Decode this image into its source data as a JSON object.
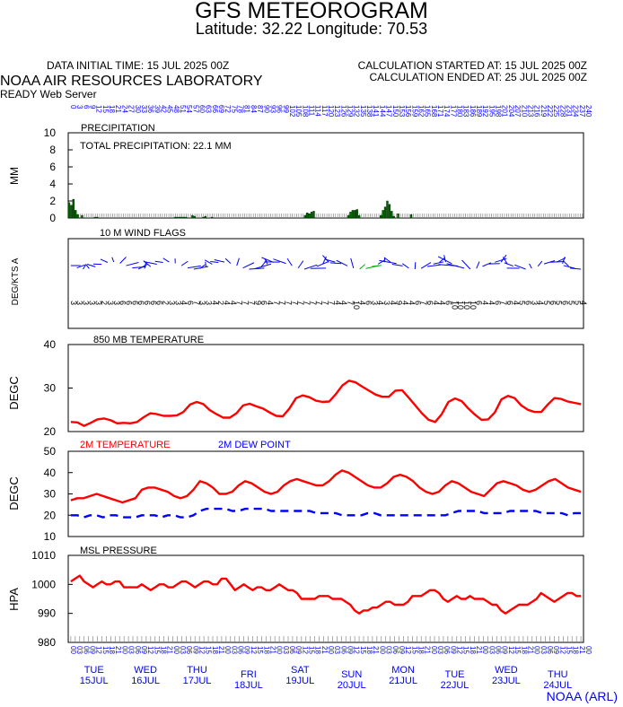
{
  "header": {
    "title": "GFS METEOROGRAM",
    "location": "Latitude: 32.22 Longitude:  70.53",
    "init_time": "DATA INITIAL TIME: 15 JUL 2025 00Z",
    "calc_started": "CALCULATION STARTED AT: 15 JUL 2025 00Z",
    "calc_ended": "CALCULATION ENDED AT: 25 JUL 2025 00Z",
    "lab": "NOAA AIR RESOURCES LABORATORY",
    "server": "READY Web Server"
  },
  "footer": {
    "credit": "NOAA (ARL)"
  },
  "colors": {
    "temp": "#ff0000",
    "dew": "#0000ff",
    "precip": "#006400",
    "wind": "#0000ff",
    "wind_alt": "#00aa00",
    "axis_text": "#0000ff"
  },
  "chart_data": [
    {
      "type": "bar",
      "name": "precipitation",
      "title": "PRECIPITATION",
      "annotation": "TOTAL PRECIPITATION:  22.1 MM",
      "ylabel": "MM",
      "ylim": [
        0,
        10
      ],
      "yticks": [
        0,
        2,
        4,
        6,
        8,
        10
      ],
      "x_hours_step": 3,
      "values": [
        1.8,
        1.5,
        2.2,
        0.9,
        0.4,
        0,
        0.3,
        0,
        0,
        0,
        0,
        0,
        0.1,
        0.1,
        0,
        0,
        0,
        0,
        0,
        0,
        0,
        0,
        0,
        0,
        0,
        0,
        0,
        0,
        0,
        0,
        0,
        0,
        0,
        0,
        0,
        0,
        0,
        0,
        0,
        0,
        0,
        0,
        0,
        0,
        0,
        0,
        0,
        0,
        0,
        0.1,
        0.1,
        0.1,
        0.1,
        0.1,
        0.1,
        0,
        0,
        0.3,
        0.2,
        0,
        0,
        0,
        0.1,
        0.2,
        0,
        0,
        0.1,
        0,
        0,
        0,
        0,
        0,
        0,
        0,
        0,
        0,
        0,
        0,
        0,
        0,
        0,
        0,
        0,
        0,
        0,
        0,
        0,
        0,
        0,
        0,
        0,
        0,
        0,
        0,
        0,
        0,
        0,
        0,
        0,
        0,
        0,
        0,
        0,
        0,
        0,
        0,
        0,
        0,
        0,
        0.3,
        0.6,
        0.5,
        0.7,
        0.8,
        0,
        0,
        0,
        0,
        0,
        0,
        0,
        0,
        0,
        0,
        0,
        0,
        0,
        0,
        0,
        0.3,
        0.7,
        0.9,
        0.9,
        1.0,
        0.3,
        0,
        0,
        0,
        0,
        0,
        0,
        0,
        0,
        0,
        0.3,
        0.9,
        1.3,
        2.0,
        1.6,
        0.8,
        0.2,
        0,
        0.5,
        0,
        0,
        0,
        0,
        0,
        0.4,
        0,
        0,
        0,
        0,
        0,
        0,
        0,
        0,
        0,
        0,
        0,
        0,
        0,
        0,
        0,
        0,
        0,
        0,
        0,
        0,
        0,
        0,
        0,
        0,
        0,
        0,
        0,
        0,
        0,
        0,
        0,
        0,
        0,
        0,
        0,
        0,
        0,
        0,
        0,
        0,
        0,
        0,
        0,
        0,
        0,
        0,
        0,
        0,
        0,
        0,
        0,
        0,
        0,
        0,
        0,
        0,
        0,
        0,
        0,
        0,
        0,
        0,
        0,
        0,
        0,
        0,
        0,
        0,
        0,
        0,
        0,
        0,
        0,
        0,
        0,
        0,
        0,
        0,
        0
      ]
    },
    {
      "type": "line",
      "name": "wind_flags",
      "title": "10 M  WIND FLAGS",
      "ylabel": "DEG/KTS  A",
      "speeds_kts": [
        3,
        3,
        3,
        3,
        3,
        2,
        3,
        3,
        6,
        6,
        6,
        6,
        6,
        6,
        6,
        2,
        3,
        3,
        4,
        6,
        7,
        3,
        3,
        4,
        2,
        4,
        4,
        7,
        7,
        7,
        9,
        6,
        4,
        7,
        7,
        7,
        7,
        7,
        7,
        7,
        7,
        7,
        7,
        4,
        4,
        7,
        10,
        4,
        6,
        3,
        4,
        3,
        4,
        9,
        4,
        4,
        6,
        7,
        6,
        4,
        4,
        6,
        10,
        10,
        10,
        10,
        6,
        4,
        4,
        6,
        7,
        6,
        4,
        5,
        6,
        3,
        4,
        5,
        6,
        5,
        6,
        5,
        5,
        4
      ],
      "speed_labels": [
        "3",
        "3",
        "3",
        "3",
        "3",
        "2",
        "3",
        "3",
        "6",
        "6",
        "6",
        "6",
        "6",
        "6",
        "6",
        "2",
        "3",
        "3",
        "4",
        "6",
        "7",
        "3",
        "3",
        "4",
        "2",
        "4",
        "4",
        "7",
        "7",
        "7",
        "9",
        "6",
        "4",
        "7",
        "7",
        "7",
        "7",
        "7",
        "7",
        "7",
        "7",
        "7",
        "7",
        "4",
        "4",
        "7",
        "10",
        "4",
        "6",
        "3",
        "4",
        "3",
        "4",
        "9",
        "4",
        "4",
        "6",
        "7",
        "6",
        "4",
        "4",
        "6",
        "10",
        "10",
        "10",
        "10",
        "6",
        "4",
        "4",
        "6",
        "7",
        "6",
        "4",
        "5",
        "6",
        "3",
        "4",
        "5",
        "6",
        "5",
        "6",
        "5",
        "5",
        "4"
      ]
    },
    {
      "type": "line",
      "name": "temp850",
      "title": "850 MB  TEMPERATURE",
      "ylabel": "DEGC",
      "ylim": [
        20,
        40
      ],
      "yticks": [
        20,
        30,
        40
      ],
      "series": [
        {
          "values": [
            22.2,
            22.1,
            21.3,
            22.0,
            22.8,
            23.0,
            22.6,
            21.9,
            22.0,
            21.9,
            22.2,
            23.3,
            24.2,
            24.0,
            23.6,
            23.6,
            23.7,
            24.5,
            26.2,
            26.8,
            26.3,
            24.9,
            24.0,
            23.2,
            23.2,
            24.2,
            26.0,
            26.4,
            25.8,
            25.3,
            24.4,
            23.6,
            23.5,
            25.3,
            27.7,
            28.3,
            27.9,
            27.1,
            26.8,
            26.9,
            28.6,
            30.6,
            31.7,
            31.3,
            30.3,
            29.4,
            28.5,
            28.0,
            28.0,
            29.4,
            29.5,
            27.8,
            26.0,
            24.2,
            22.7,
            22.2,
            24.0,
            26.8,
            27.6,
            27.0,
            25.3,
            23.9,
            22.7,
            22.8,
            24.4,
            27.4,
            28.2,
            27.7,
            26.0,
            25.0,
            24.5,
            24.5,
            26.2,
            27.7,
            27.5,
            26.9,
            26.6,
            26.3
          ]
        }
      ]
    },
    {
      "type": "line",
      "name": "temp2m",
      "title": "",
      "ylabel": "DEGC",
      "ylim": [
        10,
        50
      ],
      "yticks": [
        10,
        20,
        30,
        40,
        50
      ],
      "legend": [
        "2M TEMPERATURE",
        "2M  DEW POINT"
      ],
      "series": [
        {
          "name": "2M TEMPERATURE",
          "values": [
            27,
            28,
            28,
            29,
            30,
            29,
            28,
            27,
            26,
            27,
            28,
            32,
            33,
            33,
            32,
            31,
            29,
            28,
            29,
            32,
            36,
            35,
            33,
            30,
            30,
            31,
            34,
            36,
            35,
            33,
            31,
            30,
            31,
            34,
            36,
            37,
            36,
            35,
            34,
            34,
            36,
            39,
            41,
            40,
            38,
            36,
            34,
            33,
            33,
            35,
            38,
            39,
            38,
            36,
            33,
            31,
            30,
            31,
            34,
            36,
            35,
            33,
            31,
            30,
            29,
            32,
            35,
            36,
            35,
            34,
            32,
            31,
            32,
            34,
            36,
            37,
            35,
            33,
            32,
            31
          ]
        },
        {
          "name": "2M  DEW POINT",
          "values": [
            20,
            20,
            19,
            20,
            20,
            19,
            20,
            20,
            19,
            19,
            19,
            20,
            20,
            20,
            19,
            20,
            20,
            19,
            19,
            20,
            22,
            23,
            23,
            23,
            23,
            22,
            22,
            23,
            23,
            23,
            23,
            22,
            22,
            22,
            22,
            22,
            22,
            22,
            21,
            21,
            21,
            21,
            20,
            20,
            20,
            20,
            21,
            21,
            20,
            20,
            20,
            20,
            20,
            20,
            20,
            20,
            20,
            20,
            20,
            21,
            22,
            22,
            22,
            22,
            21,
            21,
            21,
            21,
            22,
            22,
            22,
            22,
            22,
            21,
            21,
            21,
            21,
            20,
            21,
            21
          ]
        }
      ]
    },
    {
      "type": "line",
      "name": "pressure",
      "title": "MSL PRESSURE",
      "ylabel": "HPA",
      "ylim": [
        980,
        1010
      ],
      "yticks": [
        980,
        990,
        1000,
        1010
      ],
      "series": [
        {
          "values": [
            1001,
            1002,
            1003,
            1001,
            1000,
            999,
            1000,
            1001,
            1000,
            1000,
            1001,
            1001,
            999,
            999,
            999,
            999,
            1000,
            999,
            998,
            999,
            1000,
            1000,
            999,
            999,
            1000,
            1001,
            1001,
            1000,
            999,
            1000,
            1001,
            1001,
            1000,
            1000,
            1002,
            1002,
            1000,
            998,
            999,
            1000,
            999,
            998,
            999,
            999,
            998,
            998,
            999,
            1000,
            999,
            998,
            998,
            997,
            995,
            995,
            995,
            995,
            996,
            996,
            996,
            995,
            995,
            995,
            994,
            993,
            991,
            990,
            991,
            991,
            992,
            992,
            993,
            994,
            994,
            993,
            993,
            993,
            994,
            996,
            996,
            996,
            997,
            998,
            998,
            997,
            995,
            994,
            995,
            996,
            995,
            995,
            996,
            995,
            995,
            995,
            994,
            993,
            993,
            991,
            990,
            991,
            992,
            993,
            993,
            993,
            994,
            995,
            997,
            996,
            995,
            994,
            995,
            996,
            997,
            997,
            996,
            996
          ]
        }
      ]
    }
  ],
  "time_axis": {
    "hour_labels": [
      "00",
      "03",
      "06",
      "09",
      "12",
      "15",
      "18",
      "21",
      "00",
      "03",
      "06",
      "09",
      "12",
      "15",
      "18",
      "21",
      "00",
      "03",
      "06",
      "09",
      "12",
      "15",
      "18",
      "21",
      "00",
      "03",
      "06",
      "09",
      "12",
      "15",
      "18",
      "21",
      "00",
      "03",
      "06",
      "09",
      "12",
      "15",
      "18",
      "21",
      "00",
      "03",
      "06",
      "09",
      "12",
      "15",
      "18",
      "21",
      "00",
      "03",
      "06",
      "09",
      "12",
      "15",
      "18",
      "21",
      "00",
      "03",
      "06",
      "09",
      "12",
      "15",
      "18",
      "21",
      "00",
      "03",
      "06",
      "09",
      "12",
      "15",
      "18",
      "21",
      "00",
      "03",
      "06",
      "09",
      "12",
      "15",
      "18",
      "21",
      "00"
    ],
    "forecast_hours": [
      "0",
      "3",
      "6",
      "9",
      "12",
      "15",
      "18",
      "21",
      "24",
      "27",
      "30",
      "33",
      "36",
      "39",
      "42",
      "45",
      "48",
      "51",
      "54",
      "57",
      "60",
      "63",
      "66",
      "69",
      "72",
      "75",
      "78",
      "81",
      "84",
      "87",
      "90",
      "93",
      "96",
      "99",
      "102",
      "105",
      "108",
      "111",
      "114",
      "117",
      "120",
      "123",
      "126",
      "129",
      "132",
      "135",
      "138",
      "141",
      "144",
      "147",
      "150",
      "153",
      "156",
      "159",
      "162",
      "165",
      "168",
      "171",
      "174",
      "177",
      "180",
      "183",
      "186",
      "189",
      "192",
      "195",
      "198",
      "201",
      "204",
      "207",
      "210",
      "213",
      "216",
      "219",
      "222",
      "225",
      "228",
      "231",
      "234",
      "237",
      "240"
    ],
    "days": [
      {
        "dow": "TUE",
        "date": "15JUL"
      },
      {
        "dow": "WED",
        "date": "16JUL"
      },
      {
        "dow": "THU",
        "date": "17JUL"
      },
      {
        "dow": "FRI",
        "date": "18JUL"
      },
      {
        "dow": "SAT",
        "date": "19JUL"
      },
      {
        "dow": "SUN",
        "date": "20JUL"
      },
      {
        "dow": "MON",
        "date": "21JUL"
      },
      {
        "dow": "TUE",
        "date": "22JUL"
      },
      {
        "dow": "WED",
        "date": "23JUL"
      },
      {
        "dow": "THU",
        "date": "24JUL"
      }
    ]
  }
}
